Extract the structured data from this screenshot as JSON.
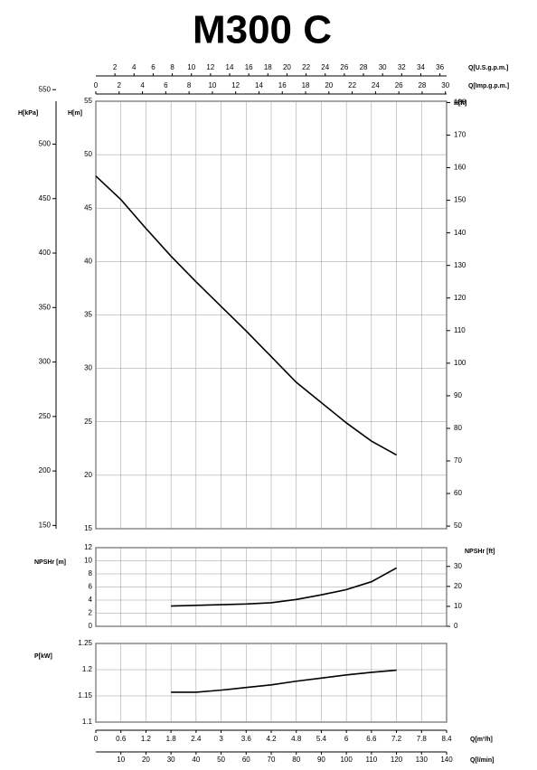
{
  "title": "M300 C",
  "chart_data": [
    {
      "type": "line",
      "ylabel": "H[m]",
      "ylim": [
        15,
        55
      ],
      "yticks": [
        15,
        20,
        25,
        30,
        35,
        40,
        45,
        50,
        55
      ],
      "y2label": "H[ft]",
      "y2lim": [
        49.2,
        180.4
      ],
      "y2ticks": [
        50,
        60,
        70,
        80,
        90,
        100,
        110,
        120,
        130,
        140,
        150,
        160,
        170,
        180
      ],
      "y3label": "H[kPa]",
      "y3lim": [
        147,
        539.4
      ],
      "y3ticks": [
        150,
        200,
        250,
        300,
        350,
        400,
        450,
        500,
        550
      ],
      "xlim": [
        0,
        8.4
      ],
      "xticks": [
        0,
        0.6,
        1.2,
        1.8,
        2.4,
        3,
        3.6,
        4.2,
        4.8,
        5.4,
        6,
        6.6,
        7.2,
        7.8,
        8.4
      ],
      "top_axes": [
        {
          "label": "Q[U.S.g.p.m.]",
          "lim": [
            0,
            36.7
          ],
          "ticks": [
            2,
            4,
            6,
            8,
            10,
            12,
            14,
            16,
            18,
            20,
            22,
            24,
            26,
            28,
            30,
            32,
            34,
            36
          ]
        },
        {
          "label": "Q[Imp.g.p.m.]",
          "lim": [
            0,
            30.1
          ],
          "ticks": [
            0,
            2,
            4,
            6,
            8,
            10,
            12,
            14,
            16,
            18,
            20,
            22,
            24,
            26,
            28,
            30
          ]
        }
      ],
      "grid": true,
      "x": [
        0,
        0.6,
        1.2,
        1.8,
        2.4,
        3,
        3.6,
        4.2,
        4.8,
        5.4,
        6,
        6.6,
        7.2
      ],
      "series": [
        {
          "color": "#000000",
          "values": [
            48,
            45.8,
            43.1,
            40.5,
            38.1,
            35.8,
            33.5,
            31.1,
            28.7,
            26.8,
            24.9,
            23.2,
            21.9
          ]
        }
      ]
    },
    {
      "type": "line",
      "ylabel": "NPSHr [m]",
      "ylim": [
        0,
        12
      ],
      "yticks": [
        0,
        2,
        4,
        6,
        8,
        10,
        12
      ],
      "y2label": "NPSHr [ft]",
      "y2lim": [
        0,
        39.4
      ],
      "y2ticks": [
        0,
        10,
        20,
        30
      ],
      "xlim": [
        0,
        8.4
      ],
      "xticks": [
        0,
        0.6,
        1.2,
        1.8,
        2.4,
        3,
        3.6,
        4.2,
        4.8,
        5.4,
        6,
        6.6,
        7.2,
        7.8,
        8.4
      ],
      "grid": true,
      "x": [
        1.8,
        2.4,
        3,
        3.6,
        4.2,
        4.8,
        5.4,
        6,
        6.6,
        7.2
      ],
      "series": [
        {
          "color": "#000000",
          "values": [
            3.1,
            3.2,
            3.3,
            3.4,
            3.6,
            4.1,
            4.8,
            5.6,
            6.8,
            8.9
          ]
        }
      ]
    },
    {
      "type": "line",
      "ylabel": "P[kW]",
      "ylim": [
        1.1,
        1.25
      ],
      "yticks": [
        1.1,
        1.15,
        1.2,
        1.25
      ],
      "xlabel": "Q[m³/h]",
      "xlim": [
        0,
        8.4
      ],
      "xticks": [
        0,
        0.6,
        1.2,
        1.8,
        2.4,
        3,
        3.6,
        4.2,
        4.8,
        5.4,
        6,
        6.6,
        7.2,
        7.8,
        8.4
      ],
      "bottom_axes": [
        {
          "label": "Q[l/min]",
          "lim": [
            0,
            140
          ],
          "ticks": [
            10,
            20,
            30,
            40,
            50,
            60,
            70,
            80,
            90,
            100,
            110,
            120,
            130,
            140
          ]
        }
      ],
      "grid": true,
      "x": [
        1.8,
        2.4,
        3,
        3.6,
        4.2,
        4.8,
        5.4,
        6,
        6.6,
        7.2
      ],
      "series": [
        {
          "color": "#000000",
          "values": [
            1.157,
            1.157,
            1.161,
            1.166,
            1.171,
            1.178,
            1.184,
            1.19,
            1.195,
            1.199
          ]
        }
      ]
    }
  ]
}
